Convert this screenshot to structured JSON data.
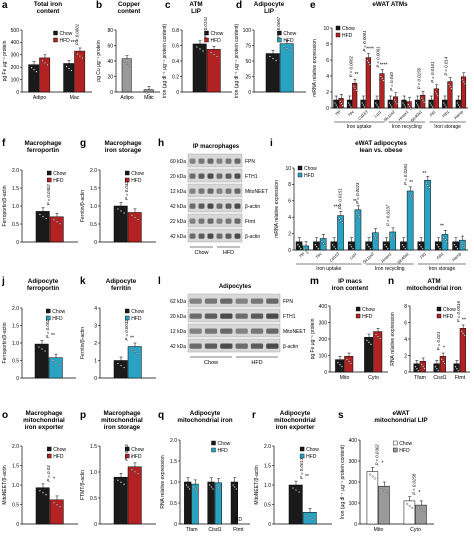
{
  "colors": {
    "chow": "#1a1a1a",
    "hfd_red": "#b22222",
    "hfd_blue": "#2aa3c2",
    "grey": "#9a9a9a"
  },
  "panels": [
    {
      "id": "a",
      "title": "Total iron\ncontent",
      "ylabel": "pg Fe μg⁻¹ protein",
      "series_names": [
        "Chow",
        "HFD"
      ],
      "colors": [
        "#1a1a1a",
        "#b22222"
      ],
      "ticks": [
        "0",
        "100",
        "200",
        "300",
        "400",
        "500"
      ],
      "ymax": 500,
      "categories": [
        "Adipo",
        "Mac"
      ],
      "values": [
        [
          220,
          230
        ],
        [
          275,
          330
        ]
      ],
      "stats": [
        {
          "text": "****",
          "g": 1
        },
        {
          "text": "P < 0.0001",
          "g": 1
        }
      ],
      "legend": true
    },
    {
      "id": "b",
      "title": "Copper\ncontent",
      "ylabel": "pg Cu μg⁻¹ protein",
      "series_names": [],
      "colors": [
        "#9a9a9a"
      ],
      "ticks": [
        "0",
        "20",
        "40",
        "60",
        "80"
      ],
      "ymax": 80,
      "categories": [
        "Adipo",
        "Mac"
      ],
      "values": [
        [
          43,
          3
        ]
      ],
      "stats": [],
      "legend": false
    },
    {
      "id": "c",
      "title": "ATM\nLIP",
      "ylabel": "Iron (μg dl⁻¹ μg⁻¹ protein content)",
      "series_names": [
        "Chow",
        "HFD"
      ],
      "colors": [
        "#1a1a1a",
        "#b22222"
      ],
      "ticks": [
        "0",
        "0.2",
        "0.4",
        "0.6",
        "0.8"
      ],
      "ymax": 0.8,
      "categories": [
        ""
      ],
      "values": [
        [
          0.62
        ],
        [
          0.55
        ]
      ],
      "stats": [
        {
          "text": "P = 0.0151",
          "g": 0
        }
      ],
      "legend": true
    },
    {
      "id": "d",
      "title": "Adipocyte\nLIP",
      "ylabel": "Iron (μg dl⁻¹ μg⁻¹ protein content)",
      "series_names": [
        "Chow",
        "HFD"
      ],
      "colors": [
        "#1a1a1a",
        "#2aa3c2"
      ],
      "ticks": [
        "0",
        "25",
        "50",
        "75",
        "100"
      ],
      "ymax": 100,
      "categories": [
        ""
      ],
      "values": [
        [
          62
        ],
        [
          78
        ]
      ],
      "stats": [
        {
          "text": "P = 0.0067",
          "g": 0
        }
      ],
      "legend": true
    },
    {
      "id": "e",
      "title": "eWAT ATMs",
      "ylabel": "mRNA relative expression",
      "series_names": [
        "Chow",
        "HFD"
      ],
      "colors": [
        "#1a1a1a",
        "#b22222"
      ],
      "ticks": [
        "0",
        "2",
        "4",
        "6",
        "8",
        "10"
      ],
      "ymax": 10,
      "categories": [
        "Tfrl",
        "Tfrc",
        "Cd163",
        "Lrp1",
        "Slc11a2",
        "Hmox1",
        "Slc40a1",
        "Ftl1",
        "Fth1",
        "Hamp"
      ],
      "values": [
        [
          1,
          1,
          1,
          1,
          1,
          1,
          1,
          1,
          1,
          1
        ],
        [
          1.2,
          3.1,
          6.3,
          4.3,
          1.4,
          0.8,
          1.6,
          2.4,
          3.3,
          3.9
        ]
      ],
      "stats": [
        {
          "text": "P = 0.0062",
          "g": 1
        },
        {
          "text": "**",
          "g": 1
        },
        {
          "text": "P = 0.0001",
          "g": 2
        },
        {
          "text": "****",
          "g": 2
        },
        {
          "text": "P < 0.0001",
          "g": 3
        },
        {
          "text": "****",
          "g": 3
        },
        {
          "text": "P = 0.040",
          "g": 4
        },
        {
          "text": "P = 0.0156",
          "g": 6
        },
        {
          "text": "P = 0.0161",
          "g": 7
        },
        {
          "text": "P = 0.014",
          "g": 8
        }
      ],
      "groups": [
        "Iron uptake",
        "Iron recycling",
        "Iron storage"
      ],
      "legend": true
    },
    {
      "id": "f",
      "title": "Macrophage\nferroportin",
      "ylabel": "Ferroportin/β-actin",
      "series_names": [
        "Chow",
        "HFD"
      ],
      "colors": [
        "#1a1a1a",
        "#b22222"
      ],
      "ticks": [
        "0",
        "0.5",
        "1.0",
        "1.5",
        "2.0"
      ],
      "ymax": 2,
      "categories": [
        ""
      ],
      "values": [
        [
          0.85
        ],
        [
          0.7
        ]
      ],
      "stats": [
        {
          "text": "P = 0.0302",
          "g": 0
        }
      ],
      "legend": true
    },
    {
      "id": "g",
      "title": "Macrophage\niron storage",
      "ylabel": "Ferritin/β-actin",
      "series_names": [
        "Chow",
        "HFD"
      ],
      "colors": [
        "#1a1a1a",
        "#b22222"
      ],
      "ticks": [
        "0",
        "0.5",
        "1.0",
        "1.5",
        "2.0"
      ],
      "ymax": 2,
      "categories": [
        ""
      ],
      "values": [
        [
          1.0
        ],
        [
          0.82
        ]
      ],
      "stats": [
        {
          "text": "P = 0.032",
          "g": 0
        }
      ],
      "legend": true
    },
    {
      "id": "i",
      "title": "eWAT adipocytes\nlean vs. obese",
      "ylabel": "mRNA relative expression",
      "series_names": [
        "Chow",
        "HFD"
      ],
      "colors": [
        "#1a1a1a",
        "#2aa3c2"
      ],
      "ticks": [
        "0",
        "2",
        "4",
        "6",
        "8",
        "10"
      ],
      "ymax": 10,
      "categories": [
        "Tfrl",
        "Tfrc",
        "Cd163",
        "Lrp1",
        "Slc11a2",
        "Hmox1",
        "Slc40a1",
        "Ftl1",
        "Fth1",
        "Hamp"
      ],
      "values": [
        [
          1,
          1,
          1,
          1,
          1,
          1,
          1,
          1,
          1,
          1
        ],
        [
          0.5,
          1.4,
          4.2,
          4.9,
          2.1,
          2.2,
          7.2,
          8.5,
          1.9,
          1.2
        ]
      ],
      "stats": [
        {
          "text": "****",
          "g": 2
        },
        {
          "text": "**",
          "g": 3
        },
        {
          "text": "P = 0.0151",
          "g": 2
        },
        {
          "text": "P = 0.0023",
          "g": 3
        },
        {
          "text": "P = 0.0237",
          "g": 5
        },
        {
          "text": "P = 0.0281",
          "g": 6
        },
        {
          "text": "**",
          "g": 6
        },
        {
          "text": "**",
          "g": 7
        },
        {
          "text": "**",
          "g": 8
        }
      ],
      "groups": [
        "Iron uptake",
        "Iron recycling",
        "Iron storage"
      ],
      "legend": true
    },
    {
      "id": "j",
      "title": "Adipocyte\nferroportin",
      "ylabel": "Ferroportin/β-actin",
      "series_names": [
        "Chow",
        "HFD"
      ],
      "colors": [
        "#1a1a1a",
        "#2aa3c2"
      ],
      "ticks": [
        "0",
        "0.5",
        "1.0",
        "1.5",
        "2.0"
      ],
      "ymax": 2,
      "categories": [
        ""
      ],
      "values": [
        [
          0.97
        ],
        [
          0.58
        ]
      ],
      "stats": [
        {
          "text": "P = 0.0022",
          "g": 0
        },
        {
          "text": "**",
          "g": 0
        }
      ],
      "legend": true
    },
    {
      "id": "k",
      "title": "Adipocyte\nferritin",
      "ylabel": "Ferritin/β-actin",
      "series_names": [
        "Chow",
        "HFD"
      ],
      "colors": [
        "#1a1a1a",
        "#2aa3c2"
      ],
      "ticks": [
        "0",
        "1",
        "2",
        "3",
        "4"
      ],
      "ymax": 4,
      "categories": [
        ""
      ],
      "values": [
        [
          1.0
        ],
        [
          1.8
        ]
      ],
      "stats": [
        {
          "text": "P = 0.0032",
          "g": 0
        },
        {
          "text": "**",
          "g": 0
        }
      ],
      "legend": true
    },
    {
      "id": "m",
      "title": "IP macs\niron content",
      "ylabel": "pg Fe μg⁻¹ protein",
      "series_names": [
        "Chow",
        "HFD"
      ],
      "colors": [
        "#1a1a1a",
        "#b22222"
      ],
      "ticks": [
        "0",
        "100",
        "200",
        "300",
        "400"
      ],
      "ymax": 400,
      "categories": [
        "Mito",
        "Cyto"
      ],
      "values": [
        [
          75,
          210
        ],
        [
          95,
          245
        ]
      ],
      "stats": [],
      "legend": true
    },
    {
      "id": "n",
      "title": "ATM\nmitochondrial iron",
      "ylabel": "RNA relative expression",
      "series_names": [
        "Chow",
        "HFD"
      ],
      "colors": [
        "#1a1a1a",
        "#b22222"
      ],
      "ticks": [
        "0",
        "2",
        "4",
        "6",
        "8"
      ],
      "ymax": 8,
      "categories": [
        "Tfam",
        "Cisd1",
        "Ftmt"
      ],
      "values": [
        [
          1,
          1,
          1
        ],
        [
          1.3,
          1.9,
          5.3
        ]
      ],
      "stats": [
        {
          "text": "P = 0.021",
          "g": 1
        },
        {
          "text": "*",
          "g": 1
        },
        {
          "text": "P = 0.0016",
          "g": 2
        },
        {
          "text": "**",
          "g": 2
        }
      ],
      "legend": true
    },
    {
      "id": "o",
      "title": "Macrophage\nmitochondrial\niron exporter",
      "ylabel": "MitoNEET/β-actin",
      "series_names": [
        "Chow",
        "HFD"
      ],
      "colors": [
        "#1a1a1a",
        "#b22222"
      ],
      "ticks": [
        "0",
        "0.5",
        "1.0",
        "1.5",
        "2.0"
      ],
      "ymax": 2,
      "categories": [
        ""
      ],
      "values": [
        [
          0.93
        ],
        [
          0.62
        ]
      ],
      "stats": [
        {
          "text": "P = 0.03",
          "g": 0
        },
        {
          "text": "*",
          "g": 0
        }
      ],
      "legend": true
    },
    {
      "id": "p",
      "title": "Macrophage\nmitochondrial\niron storage",
      "ylabel": "FTMT/β-actin",
      "series_names": [
        "Chow",
        "HFD"
      ],
      "colors": [
        "#1a1a1a",
        "#b22222"
      ],
      "ticks": [
        "0",
        "0.5",
        "1.0",
        "1.5"
      ],
      "ymax": 1.5,
      "categories": [
        ""
      ],
      "values": [
        [
          0.9
        ],
        [
          1.1
        ]
      ],
      "stats": [
        {
          "text": "P = 0.03",
          "g": 0
        },
        {
          "text": "*",
          "g": 0
        }
      ],
      "legend": true
    },
    {
      "id": "q",
      "title": "Adipocyte\nmitochondrial iron",
      "ylabel": "RNA relative expression",
      "series_names": [
        "Chow",
        "HFD"
      ],
      "colors": [
        "#1a1a1a",
        "#2aa3c2"
      ],
      "ticks": [
        "0",
        "0.5",
        "1.0",
        "1.5",
        "2.0"
      ],
      "ymax": 2,
      "categories": [
        "Tfam",
        "Cisd1",
        "Ftmt"
      ],
      "values": [
        [
          1,
          1,
          1
        ],
        [
          0.95,
          0.98,
          0
        ]
      ],
      "stats": [
        {
          "text": "ND",
          "g": 2
        }
      ],
      "legend": true
    },
    {
      "id": "r",
      "title": "Adipocyte\nmitochondrial\niron exporter",
      "ylabel": "MitoNEET/β-actin",
      "series_names": [
        "Chow",
        "HFD"
      ],
      "colors": [
        "#1a1a1a",
        "#2aa3c2"
      ],
      "ticks": [
        "0",
        "0.5",
        "1.0",
        "1.5",
        "2.0"
      ],
      "ymax": 2,
      "categories": [
        ""
      ],
      "values": [
        [
          1.0
        ],
        [
          0.3
        ]
      ],
      "stats": [
        {
          "text": "P = 0.0013",
          "g": 0
        },
        {
          "text": "**",
          "g": 0
        }
      ],
      "legend": true
    },
    {
      "id": "s",
      "title": "eWAT\nmitochondrial LIP",
      "ylabel": "Iron (μg dl⁻¹ μg⁻¹ protein content)",
      "series_names": [
        "Chow",
        "HFD"
      ],
      "colors": [
        "#ffffff",
        "#9a9a9a"
      ],
      "ticks": [
        "0",
        "100",
        "200",
        "300",
        "400"
      ],
      "ymax": 400,
      "categories": [
        "Mito",
        "Cyto"
      ],
      "values": [
        [
          250,
          110
        ],
        [
          180,
          90
        ]
      ],
      "stats": [
        {
          "text": "P = 0.0302",
          "g": 0
        },
        {
          "text": "P = 0.0258",
          "g": 1
        },
        {
          "text": "*",
          "g": 0
        },
        {
          "text": "*",
          "g": 1
        }
      ],
      "legend": true
    }
  ],
  "blots": [
    {
      "id": "h",
      "title": "IP macrophages",
      "kda": [
        "60 kDa",
        "20 kDa",
        "12 kDa",
        "42 kDa",
        "22 kDa",
        "42 kDa"
      ],
      "bands": [
        "FPN",
        "FTH1",
        "MitoNEET",
        "β-actin",
        "Ftmt",
        "β-actin"
      ],
      "groups": [
        "Chow",
        "HFD"
      ]
    },
    {
      "id": "l",
      "title": "Adipocytes",
      "kda": [
        "62 kDa",
        "20 kDa",
        "12 kDa",
        "42 kDa"
      ],
      "bands": [
        "FPN",
        "FTH1",
        "MitoNEET",
        "β-actin"
      ],
      "groups": [
        "Chow",
        "HFD"
      ]
    }
  ]
}
